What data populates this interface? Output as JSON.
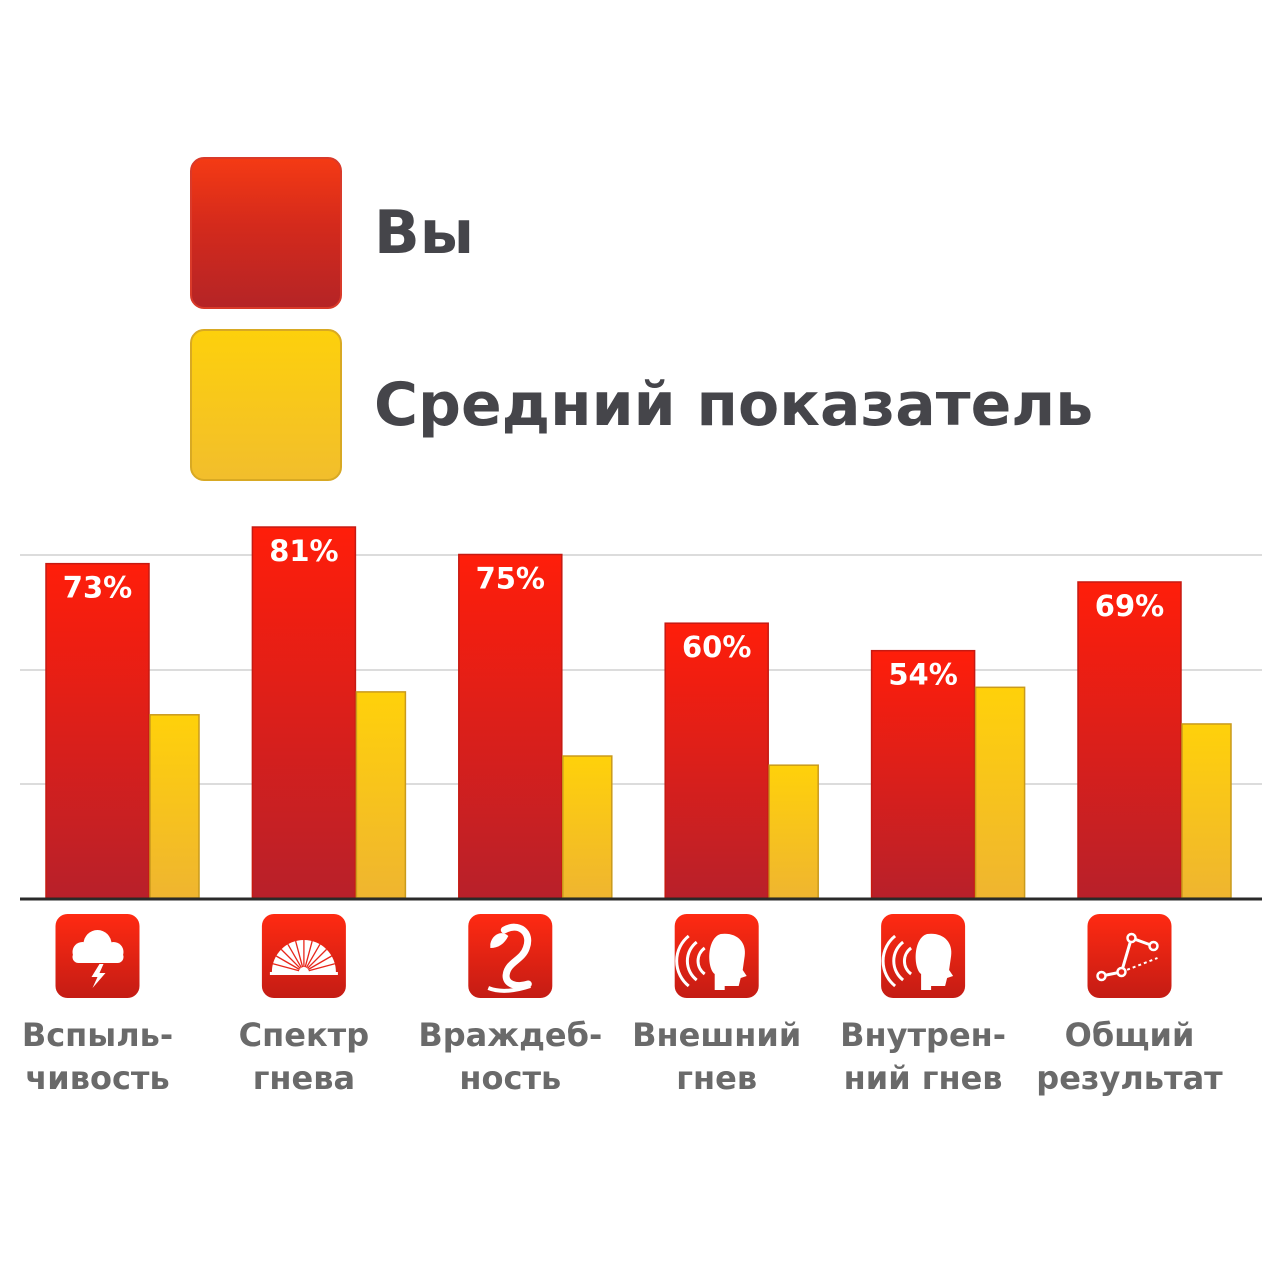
{
  "legend": {
    "you": "Вы",
    "average": "Средний показатель"
  },
  "colors": {
    "you_top": "#ff1e0a",
    "you_bottom": "#b8202a",
    "average_top": "#ffd10a",
    "average_bottom": "#efb530",
    "axis": "#2a2a2a",
    "grid": "#dcdcdc",
    "icon_top": "#ff2a12",
    "icon_bottom": "#c41c14"
  },
  "chart_data": {
    "type": "bar",
    "categories": [
      "Вспыль-\nчивость",
      "Спектр\nгнева",
      "Враждеб-\nность",
      "Внешний\nгнев",
      "Внутрен-\nний гнев",
      "Общий\nрезультат"
    ],
    "series": [
      {
        "name": "Вы",
        "values": [
          73,
          81,
          75,
          60,
          54,
          69
        ],
        "labels": [
          "73%",
          "81%",
          "75%",
          "60%",
          "54%",
          "69%"
        ]
      },
      {
        "name": "Средний показатель",
        "values": [
          40,
          45,
          31,
          29,
          46,
          38
        ]
      }
    ],
    "ylim": [
      0,
      100
    ],
    "grid": true,
    "legend_position": "top-left",
    "icons": [
      "storm-cloud-icon",
      "fan-spectrum-icon",
      "cobra-icon",
      "speaking-head-outward-icon",
      "speaking-head-inward-icon",
      "line-graph-icon"
    ]
  }
}
